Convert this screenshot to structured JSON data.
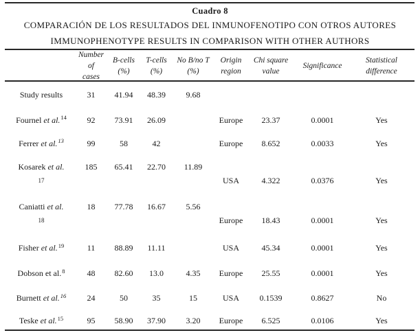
{
  "colors": {
    "background": "#ffffff",
    "text": "#1a1a1a",
    "rule": "#262626"
  },
  "table": {
    "caption_label": "Cuadro 8",
    "title_es": "COMPARACIÓN DE LOS RESULTADOS DEL INMUNOFENOTIPO CON OTROS AUTORES",
    "title_en": "IMMUNOPHENOTYPE RESULTS IN COMPARISON WITH OTHER AUTHORS"
  },
  "columns": [
    {
      "id": "author",
      "line1": "",
      "line2": ""
    },
    {
      "id": "cases",
      "line1": "Number of",
      "line2": "cases"
    },
    {
      "id": "b_cells",
      "line1": "B-cells",
      "line2": "(%)"
    },
    {
      "id": "t_cells",
      "line1": "T-cells",
      "line2": "(%)"
    },
    {
      "id": "no_b_no_t",
      "line1": "No B/no T",
      "line2": "(%)"
    },
    {
      "id": "origin",
      "line1": "Origin",
      "line2": "region"
    },
    {
      "id": "chi_square",
      "line1": "Chi square",
      "line2": "value"
    },
    {
      "id": "significance",
      "line1": "Significance",
      "line2": ""
    },
    {
      "id": "difference",
      "line1": "Statistical",
      "line2": "difference"
    }
  ],
  "rows": [
    {
      "author": {
        "name": "Study results",
        "etal": "",
        "etal_italic": false,
        "sup": "",
        "sup_italic": false
      },
      "two_line": false,
      "cases": "31",
      "b_cells": "41.94",
      "t_cells": "48.39",
      "no_b_no_t": "9.68",
      "origin": "",
      "chi_square": "",
      "significance": "",
      "difference": ""
    },
    {
      "author": {
        "name": "Fournel",
        "etal": "et al.",
        "etal_italic": true,
        "sup": "14",
        "sup_italic": false
      },
      "two_line": false,
      "cases": "92",
      "b_cells": "73.91",
      "t_cells": "26.09",
      "no_b_no_t": "",
      "origin": "Europe",
      "chi_square": "23.37",
      "significance": "0.0001",
      "difference": "Yes"
    },
    {
      "author": {
        "name": "Ferrer",
        "etal": "et al.",
        "etal_italic": true,
        "sup": "13",
        "sup_italic": true
      },
      "two_line": false,
      "cases": "99",
      "b_cells": "58",
      "t_cells": "42",
      "no_b_no_t": "",
      "origin": "Europe",
      "chi_square": "8.652",
      "significance": "0.0033",
      "difference": "Yes"
    },
    {
      "author": {
        "name": "Kosarek",
        "etal": "et al.",
        "etal_italic": true,
        "sup": "17",
        "sup_italic": false,
        "sup_second_line": true
      },
      "two_line": true,
      "cases": "185",
      "b_cells": "65.41",
      "t_cells": "22.70",
      "no_b_no_t": "11.89",
      "origin": "USA",
      "chi_square": "4.322",
      "significance": "0.0376",
      "difference": "Yes"
    },
    {
      "author": {
        "name": "Caniatti",
        "etal": "et al.",
        "etal_italic": true,
        "sup": "18",
        "sup_italic": false,
        "sup_second_line": true
      },
      "two_line": true,
      "cases": "18",
      "b_cells": "77.78",
      "t_cells": "16.67",
      "no_b_no_t": "5.56",
      "origin": "Europe",
      "chi_square": "18.43",
      "significance": "0.0001",
      "difference": "Yes"
    },
    {
      "author": {
        "name": "Fisher",
        "etal": "et al.",
        "etal_italic": true,
        "sup": "19",
        "sup_italic": false
      },
      "two_line": false,
      "cases": "11",
      "b_cells": "88.89",
      "t_cells": "11.11",
      "no_b_no_t": "",
      "origin": "USA",
      "chi_square": "45.34",
      "significance": "0.0001",
      "difference": "Yes"
    },
    {
      "author": {
        "name": "Dobson",
        "etal": "et al.",
        "etal_italic": false,
        "sup": "8",
        "sup_italic": false
      },
      "two_line": false,
      "cases": "48",
      "b_cells": "82.60",
      "t_cells": "13.0",
      "no_b_no_t": "4.35",
      "origin": "Europe",
      "chi_square": "25.55",
      "significance": "0.0001",
      "difference": "Yes"
    },
    {
      "author": {
        "name": "Burnett",
        "etal": "et al.",
        "etal_italic": true,
        "sup": "16",
        "sup_italic": true
      },
      "two_line": false,
      "cases": "24",
      "b_cells": "50",
      "t_cells": "35",
      "no_b_no_t": "15",
      "origin": "USA",
      "chi_square": "0.1539",
      "significance": "0.8627",
      "difference": "No"
    },
    {
      "author": {
        "name": "Teske",
        "etal": "et al.",
        "etal_italic": true,
        "sup": "15",
        "sup_italic": false
      },
      "two_line": false,
      "cases": "95",
      "b_cells": "58.90",
      "t_cells": "37.90",
      "no_b_no_t": "3.20",
      "origin": "Europe",
      "chi_square": "6.525",
      "significance": "0.0106",
      "difference": "Yes"
    }
  ]
}
